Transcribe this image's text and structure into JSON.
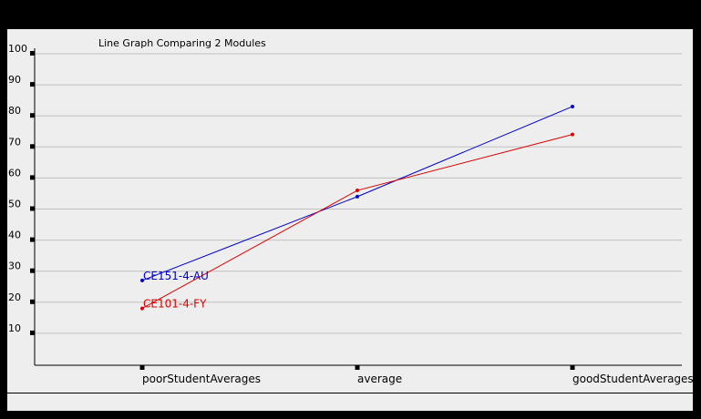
{
  "chart_data": {
    "type": "line",
    "title": "Line Graph Comparing 2 Modules",
    "xlabel": "",
    "ylabel": "",
    "categories": [
      "poorStudentAverages",
      "average",
      "goodStudentAverages"
    ],
    "yticks": [
      10,
      20,
      30,
      40,
      50,
      60,
      70,
      80,
      90,
      100
    ],
    "ylim": [
      0,
      100
    ],
    "grid": true,
    "series": [
      {
        "name": "CE151-4-AU",
        "color": "#0000cc",
        "values": [
          27,
          54,
          83
        ]
      },
      {
        "name": "CE101-4-FY",
        "color": "#dd0000",
        "values": [
          18,
          56,
          74
        ]
      }
    ]
  },
  "colors": {
    "background": "#000000",
    "panel": "#eeeeee",
    "grid": "#c0c0c0",
    "axis": "#000000"
  }
}
